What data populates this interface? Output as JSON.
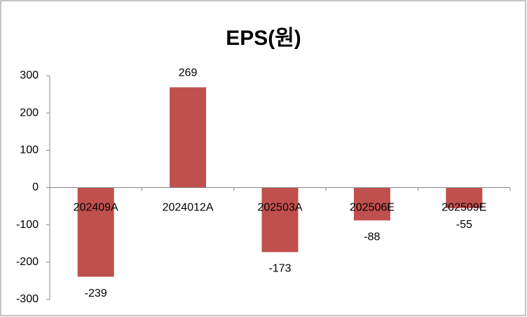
{
  "chart_data": {
    "type": "bar",
    "title": "EPS(원)",
    "categories": [
      "202409A",
      "2024012A",
      "202503A",
      "202506E",
      "202509E"
    ],
    "values": [
      -239,
      269,
      -173,
      -88,
      -55
    ],
    "color": "#c0504d",
    "ylim": [
      -300,
      300
    ],
    "yticks": [
      -300,
      -200,
      -100,
      0,
      100,
      200,
      300
    ],
    "grid": false
  }
}
